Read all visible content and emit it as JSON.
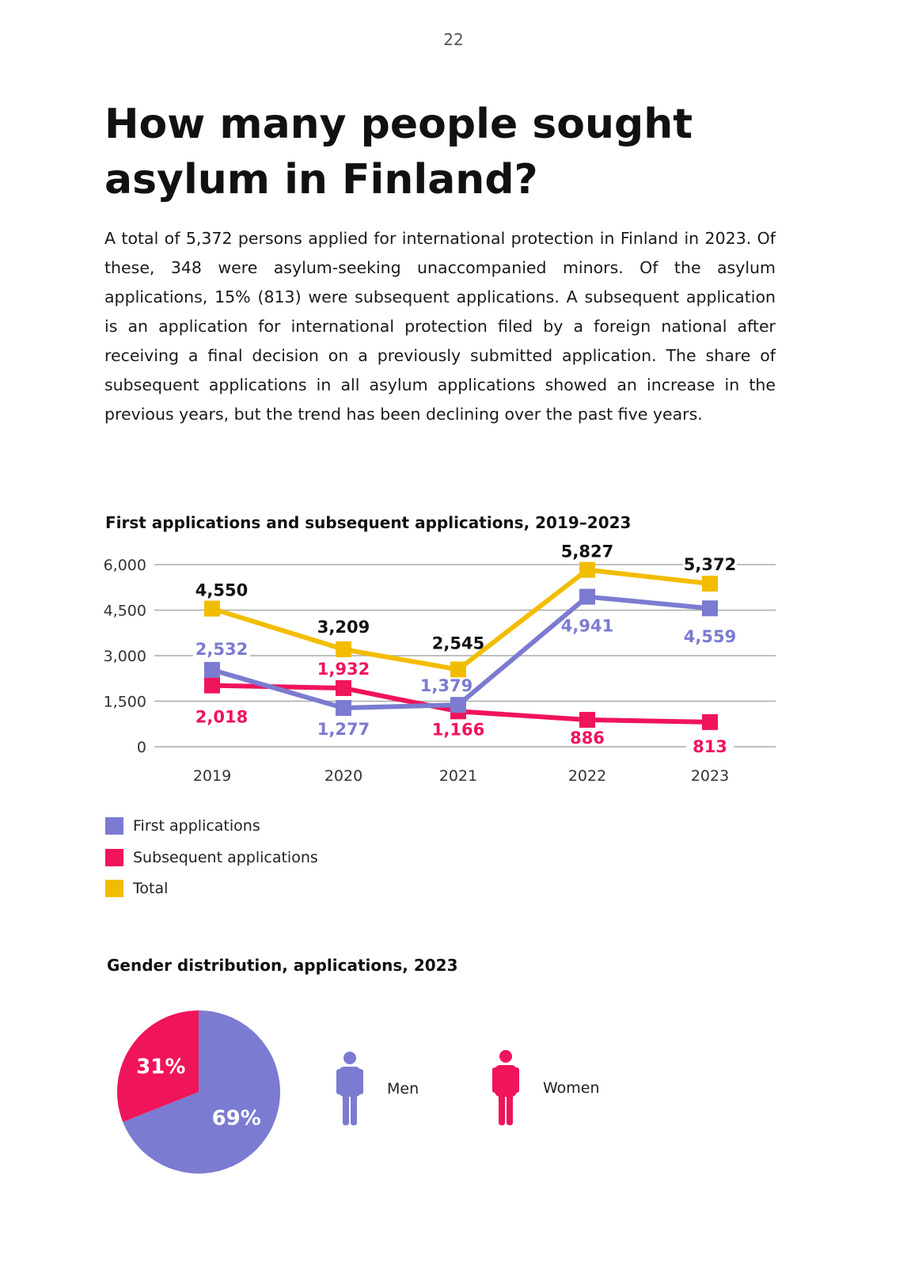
{
  "page_number": "22",
  "heading": "How many people sought asylum in Finland?",
  "body_text": "A total of 5,372 persons applied for international protection in Finland in 2023. Of these, 348 were asylum-seeking unaccompanied minors. Of the asylum applications, 15% (813) were subsequent applications. A subsequent application is an application for international protection filed by a foreign national after receiving a final decision on a previously submitted application. The share of subsequent applications in all asylum applications showed an increase in the previous years, but the trend has been declining over the past five years.",
  "colors": {
    "first": "#7b7bd1",
    "subsequent": "#f0145a",
    "total": "#f2bd00",
    "men": "#7b7bd1",
    "women": "#f0145a"
  },
  "chart_data": [
    {
      "type": "line",
      "title": "First applications and subsequent applications, 2019–2023",
      "x": [
        "2019",
        "2020",
        "2021",
        "2022",
        "2023"
      ],
      "ylim": [
        0,
        6000
      ],
      "yticks": [
        "0",
        "1,500",
        "3,000",
        "4,500",
        "6,000"
      ],
      "ytick_values": [
        0,
        1500,
        3000,
        4500,
        6000
      ],
      "grid": true,
      "legend": "bottom-left",
      "series": [
        {
          "name": "First applications",
          "color": "#7b7bd1",
          "values": [
            2532,
            1277,
            1379,
            4941,
            4559
          ],
          "labels": [
            "2,532",
            "1,277",
            "1,379",
            "4,941",
            "4,559"
          ]
        },
        {
          "name": "Subsequent applications",
          "color": "#f0145a",
          "values": [
            2018,
            1932,
            1166,
            886,
            813
          ],
          "labels": [
            "2,018",
            "1,932",
            "1,166",
            "886",
            "813"
          ]
        },
        {
          "name": "Total",
          "color": "#f2bd00",
          "values": [
            4550,
            3209,
            2545,
            5827,
            5372
          ],
          "labels": [
            "4,550",
            "3,209",
            "2,545",
            "5,827",
            "5,372"
          ]
        }
      ]
    },
    {
      "type": "pie",
      "title": "Gender distribution, applications, 2023",
      "categories": [
        "Men",
        "Women"
      ],
      "values": [
        69,
        31
      ],
      "labels": [
        "69%",
        "31%"
      ],
      "colors": [
        "#7b7bd1",
        "#f0145a"
      ]
    }
  ],
  "legend_items": [
    {
      "label": "First applications",
      "color": "#7b7bd1"
    },
    {
      "label": "Subsequent applications",
      "color": "#f0145a"
    },
    {
      "label": "Total",
      "color": "#f2bd00"
    }
  ],
  "gender_legend": {
    "men": {
      "label": "Men",
      "icon": "man-icon"
    },
    "women": {
      "label": "Women",
      "icon": "woman-icon"
    }
  }
}
